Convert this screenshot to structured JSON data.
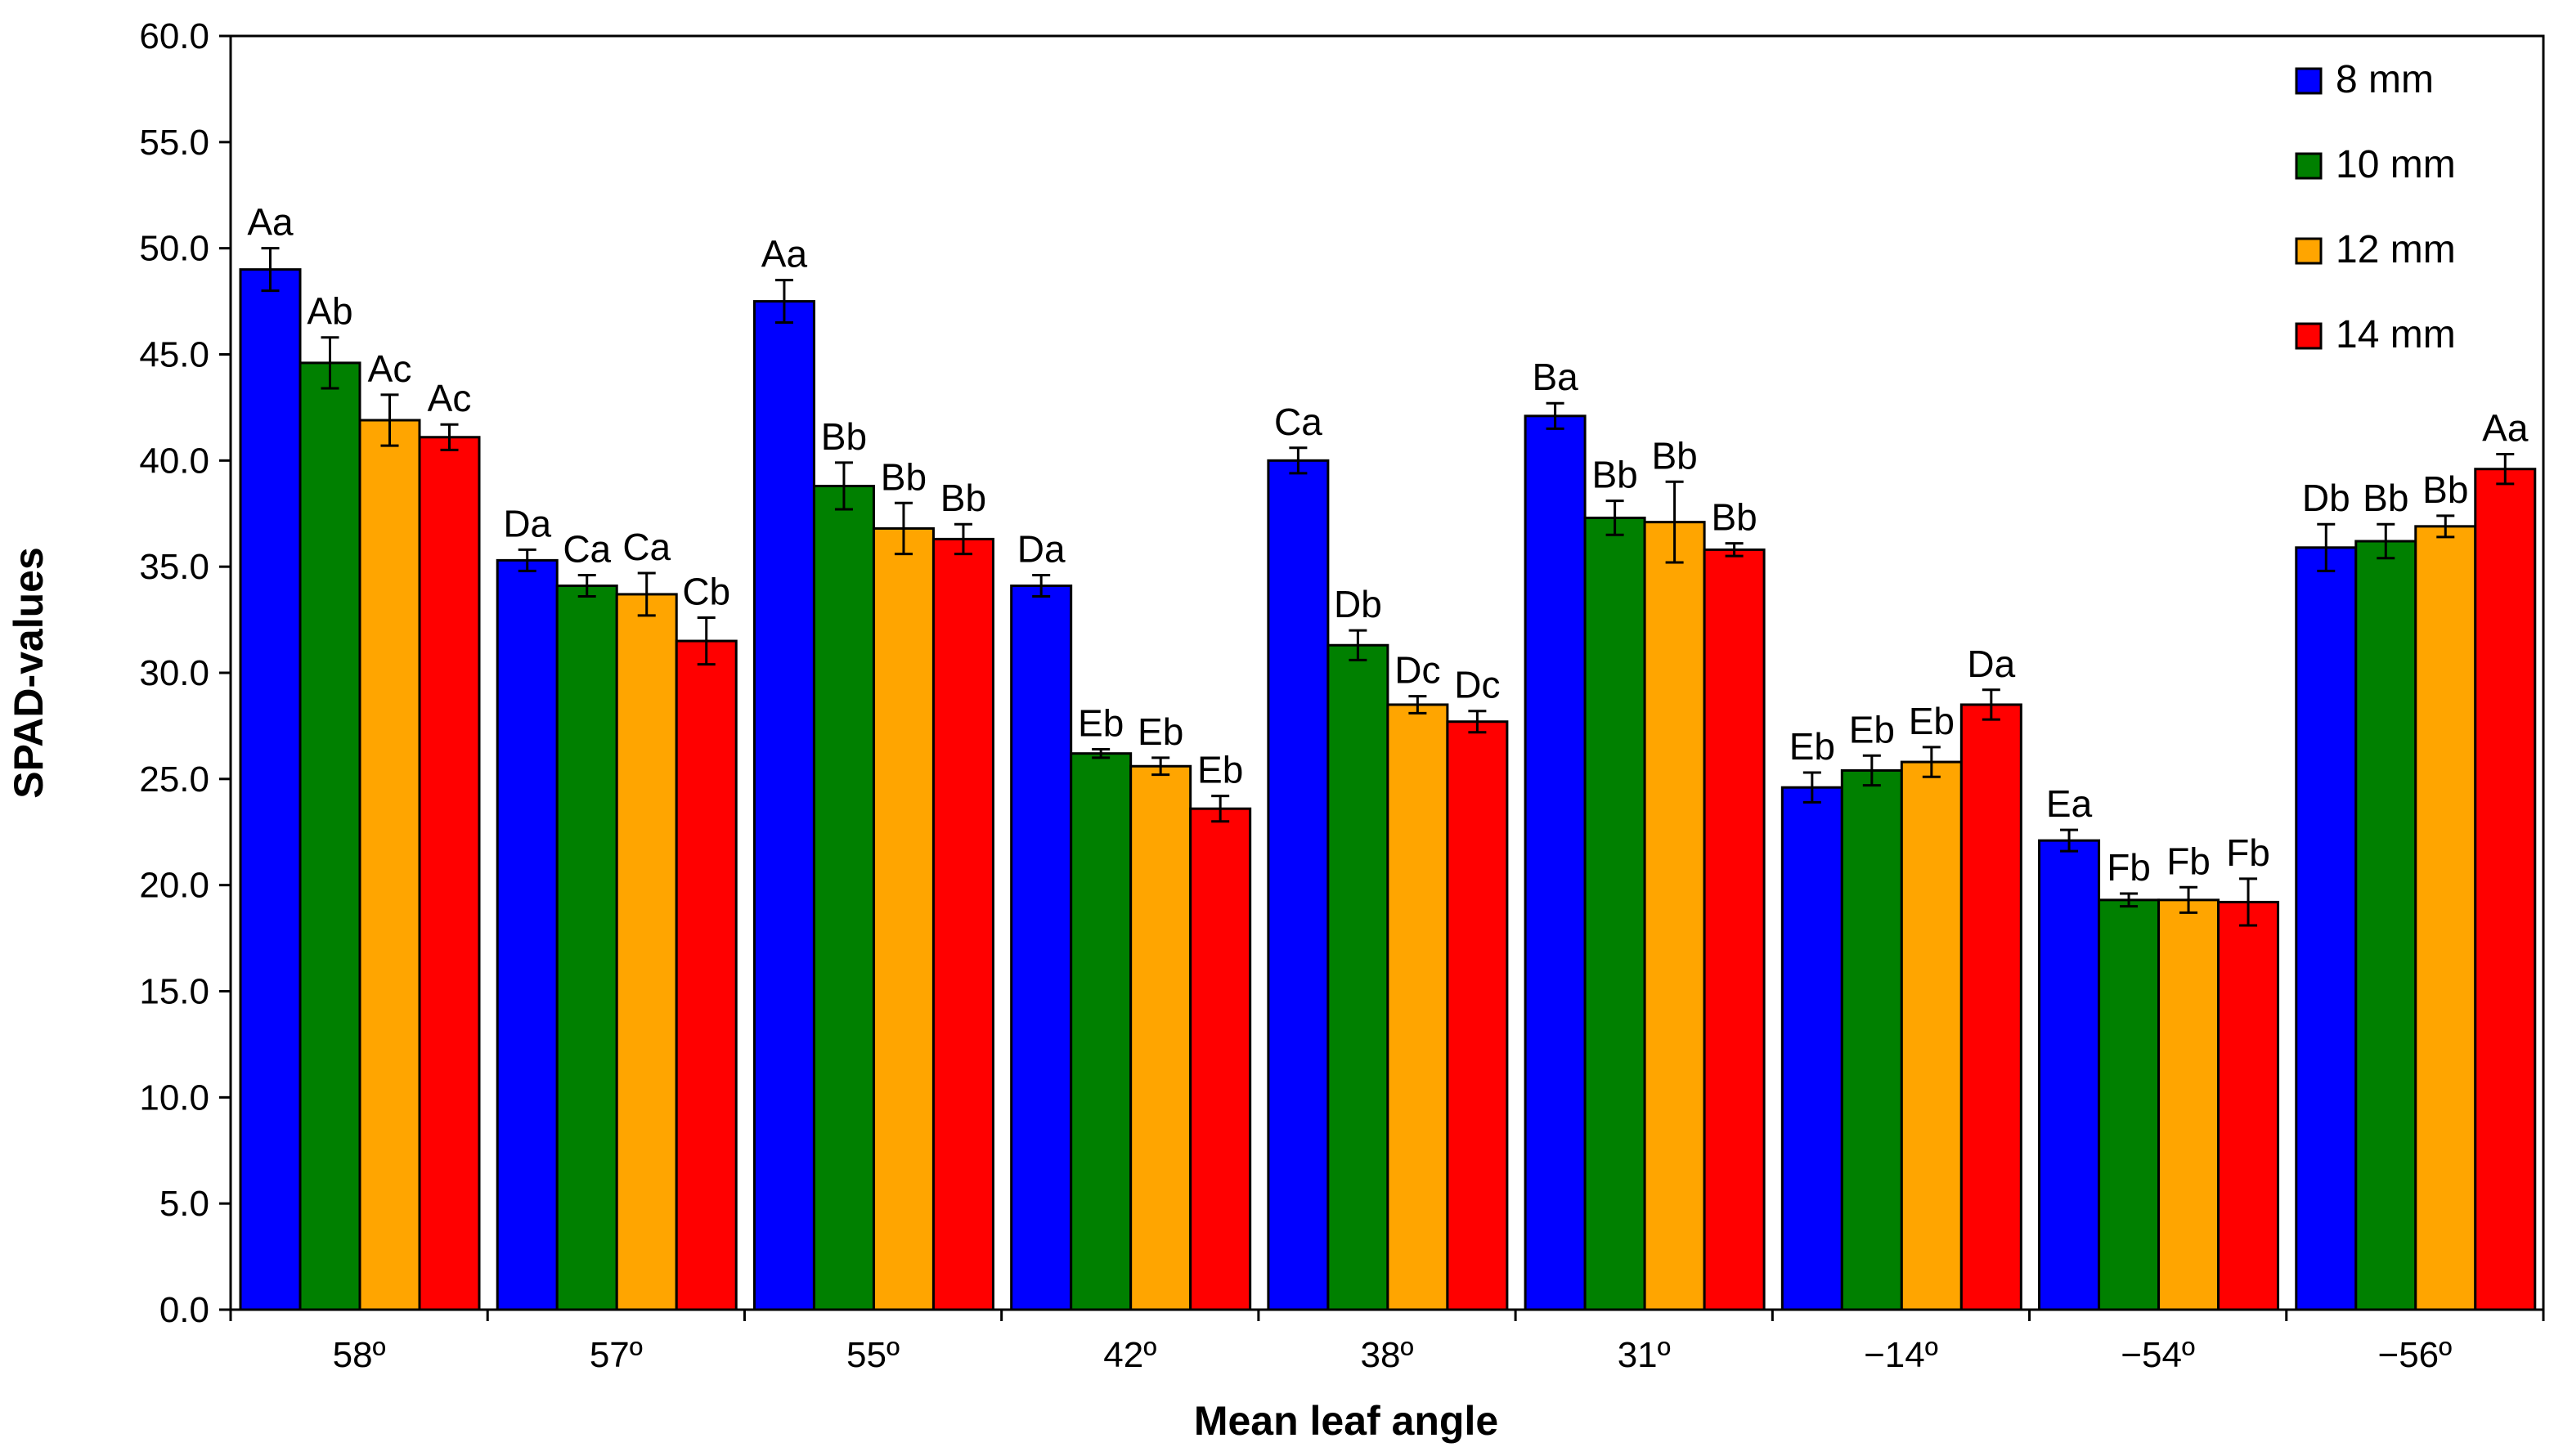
{
  "chart_data": {
    "type": "bar",
    "title": "",
    "xlabel": "Mean leaf angle",
    "ylabel": "SPAD-values",
    "ylim": [
      0,
      60
    ],
    "ytick_step": 5,
    "ytick_labels": [
      "0.0",
      "5.0",
      "10.0",
      "15.0",
      "20.0",
      "25.0",
      "30.0",
      "35.0",
      "40.0",
      "45.0",
      "50.0",
      "55.0",
      "60.0"
    ],
    "legend_position": "top-right",
    "grid": false,
    "categories": [
      "58º",
      "57º",
      "55º",
      "42º",
      "38º",
      "31º",
      "−14º",
      "−54º",
      "−56º"
    ],
    "series": [
      {
        "name": "8 mm",
        "color": "#0000ff",
        "values": [
          49.0,
          35.3,
          47.5,
          34.1,
          40.0,
          42.1,
          24.6,
          22.1,
          35.9
        ],
        "errors": [
          1.0,
          0.5,
          1.0,
          0.5,
          0.6,
          0.6,
          0.7,
          0.5,
          1.1
        ],
        "labels": [
          "Aa",
          "Da",
          "Aa",
          "Da",
          "Ca",
          "Ba",
          "Eb",
          "Ea",
          "Db"
        ]
      },
      {
        "name": "10 mm",
        "color": "#008000",
        "values": [
          44.6,
          34.1,
          38.8,
          26.2,
          31.3,
          37.3,
          25.4,
          19.3,
          36.2
        ],
        "errors": [
          1.2,
          0.5,
          1.1,
          0.2,
          0.7,
          0.8,
          0.7,
          0.3,
          0.8
        ],
        "labels": [
          "Ab",
          "Ca",
          "Bb",
          "Eb",
          "Db",
          "Bb",
          "Eb",
          "Fb",
          "Bb"
        ]
      },
      {
        "name": "12 mm",
        "color": "#ffa500",
        "values": [
          41.9,
          33.7,
          36.8,
          25.6,
          28.5,
          37.1,
          25.8,
          19.3,
          36.9
        ],
        "errors": [
          1.2,
          1.0,
          1.2,
          0.4,
          0.4,
          1.9,
          0.7,
          0.6,
          0.5
        ],
        "labels": [
          "Ac",
          "Ca",
          "Bb",
          "Eb",
          "Dc",
          "Bb",
          "Eb",
          "Fb",
          "Bb"
        ]
      },
      {
        "name": "14 mm",
        "color": "#ff0000",
        "values": [
          41.1,
          31.5,
          36.3,
          23.6,
          27.7,
          35.8,
          28.5,
          19.2,
          39.6
        ],
        "errors": [
          0.6,
          1.1,
          0.7,
          0.6,
          0.5,
          0.3,
          0.7,
          1.1,
          0.7
        ],
        "labels": [
          "Ac",
          "Cb",
          "Bb",
          "Eb",
          "Dc",
          "Bb",
          "Da",
          "Fb",
          "Aa"
        ]
      }
    ]
  }
}
